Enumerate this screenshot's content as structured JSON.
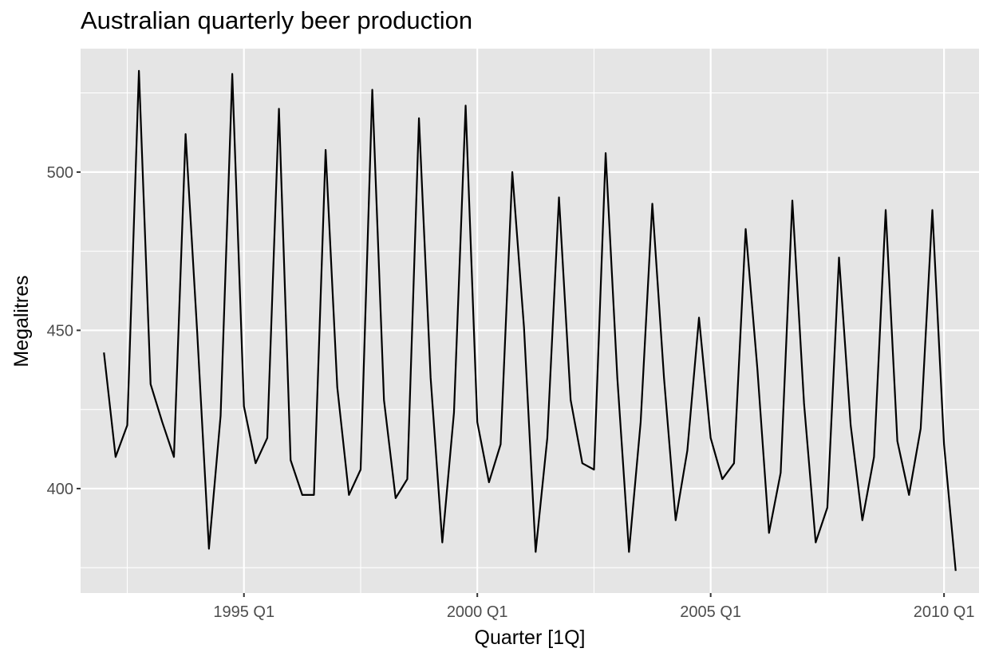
{
  "chart_data": {
    "type": "line",
    "title": "Australian quarterly beer production",
    "xlabel": "Quarter [1Q]",
    "ylabel": "Megalitres",
    "x_start": "1992 Q1",
    "x_ticks": [
      "1995 Q1",
      "2000 Q1",
      "2005 Q1",
      "2010 Q1"
    ],
    "y_ticks": [
      400,
      450,
      500
    ],
    "xlim": [
      "1991 Q3",
      "2010 Q4"
    ],
    "ylim": [
      367,
      539
    ],
    "grid": true,
    "colors": {
      "panel": "#e5e5e5",
      "grid": "#ffffff",
      "line": "#000000"
    },
    "series": [
      {
        "values": [
          443,
          410,
          420,
          532,
          433,
          421,
          410,
          512,
          449,
          381,
          423,
          531,
          426,
          408,
          416,
          520,
          409,
          398,
          398,
          507,
          432,
          398,
          406,
          526,
          428,
          397,
          403,
          517,
          435,
          383,
          424,
          521,
          421,
          402,
          414,
          500,
          451,
          380,
          416,
          492,
          428,
          408,
          406,
          506,
          435,
          380,
          421,
          490,
          435,
          390,
          412,
          454,
          416,
          403,
          408,
          482,
          438,
          386,
          405,
          491,
          427,
          383,
          394,
          473,
          420,
          390,
          410,
          488,
          415,
          398,
          419,
          488,
          414,
          374
        ]
      }
    ]
  }
}
